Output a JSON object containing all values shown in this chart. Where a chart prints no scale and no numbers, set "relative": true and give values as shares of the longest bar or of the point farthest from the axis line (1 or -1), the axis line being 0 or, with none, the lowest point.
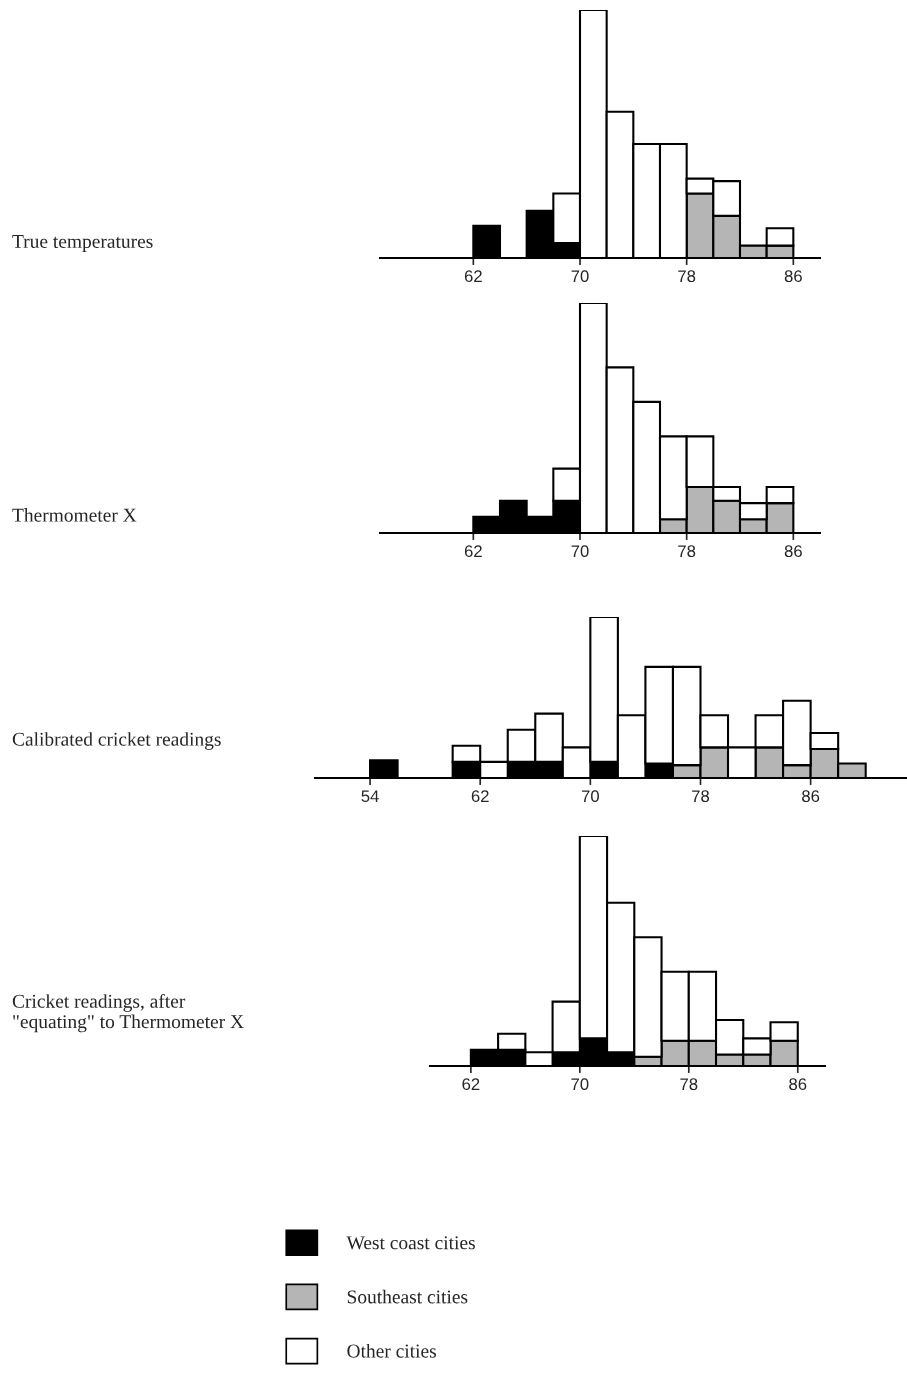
{
  "chart_data": [
    {
      "type": "bar",
      "ylabel": "True temperatures",
      "relative": true,
      "stacked": true,
      "legend": "bottom",
      "grid": false,
      "xlim": [
        55,
        88
      ],
      "xticks": [
        62,
        70,
        78,
        86
      ],
      "x": [
        63,
        65,
        67,
        69,
        71,
        73,
        75,
        77,
        79,
        81,
        83,
        85
      ],
      "series": [
        {
          "name": "West coast cities",
          "color": "#000000",
          "values": [
            0.13,
            0,
            0.19,
            0.06,
            0,
            0,
            0,
            0,
            0,
            0,
            0,
            0
          ]
        },
        {
          "name": "Southeast cities",
          "color": "#b5b5b5",
          "values": [
            0,
            0,
            0,
            0,
            0,
            0,
            0,
            0,
            0.26,
            0.17,
            0.05,
            0.05
          ]
        },
        {
          "name": "Other cities",
          "color": "#ffffff",
          "values": [
            0,
            0,
            0,
            0.2,
            1,
            0.59,
            0.46,
            0.46,
            0.06,
            0.14,
            0,
            0.07
          ]
        }
      ]
    },
    {
      "type": "bar",
      "ylabel": "Thermometer X",
      "relative": true,
      "stacked": true,
      "grid": false,
      "xlim": [
        55,
        88
      ],
      "xticks": [
        62,
        70,
        78,
        86
      ],
      "x": [
        63,
        65,
        67,
        69,
        71,
        73,
        75,
        77,
        79,
        81,
        83,
        85
      ],
      "series": [
        {
          "color": "#000000",
          "values": [
            0.07,
            0.14,
            0.07,
            0.14,
            0,
            0,
            0,
            0,
            0,
            0,
            0,
            0
          ]
        },
        {
          "color": "#b5b5b5",
          "values": [
            0,
            0,
            0,
            0,
            0,
            0,
            0,
            0.06,
            0.2,
            0.14,
            0.06,
            0.13
          ]
        },
        {
          "color": "#ffffff",
          "values": [
            0,
            0,
            0,
            0.14,
            1,
            0.72,
            0.57,
            0.36,
            0.22,
            0.06,
            0.07,
            0.07
          ]
        }
      ]
    },
    {
      "type": "bar",
      "ylabel": "Calibrated cricket readings",
      "relative": true,
      "stacked": true,
      "grid": false,
      "xlim": [
        50,
        93
      ],
      "xticks": [
        54,
        62,
        70,
        78,
        86
      ],
      "x": [
        55,
        57,
        59,
        61,
        63,
        65,
        67,
        69,
        71,
        73,
        75,
        77,
        79,
        81,
        83,
        85,
        87,
        89
      ],
      "series": [
        {
          "color": "#000000",
          "values": [
            0.11,
            0,
            0,
            0.1,
            0,
            0.1,
            0.1,
            0,
            0.1,
            0,
            0.09,
            0,
            0,
            0,
            0,
            0,
            0,
            0
          ]
        },
        {
          "color": "#b5b5b5",
          "values": [
            0,
            0,
            0,
            0,
            0,
            0,
            0,
            0,
            0,
            0,
            0,
            0.08,
            0.19,
            0,
            0.19,
            0.08,
            0.18,
            0.09
          ]
        },
        {
          "color": "#ffffff",
          "values": [
            0,
            0,
            0,
            0.1,
            0.1,
            0.2,
            0.3,
            0.19,
            0.9,
            0.39,
            0.6,
            0.61,
            0.2,
            0.19,
            0.2,
            0.4,
            0.1,
            0
          ]
        }
      ]
    },
    {
      "type": "bar",
      "ylabel": "Cricket readings, after\n\"equating\" to Thermometer X",
      "relative": true,
      "stacked": true,
      "grid": false,
      "xlim": [
        59,
        88
      ],
      "xticks": [
        62,
        70,
        78,
        86
      ],
      "x": [
        63,
        65,
        67,
        69,
        71,
        73,
        75,
        77,
        79,
        81,
        83,
        85
      ],
      "series": [
        {
          "color": "#000000",
          "values": [
            0.07,
            0.07,
            0,
            0.06,
            0.12,
            0.06,
            0,
            0,
            0,
            0,
            0,
            0
          ]
        },
        {
          "color": "#b5b5b5",
          "values": [
            0,
            0,
            0,
            0,
            0,
            0,
            0.04,
            0.11,
            0.11,
            0.05,
            0.05,
            0.11
          ]
        },
        {
          "color": "#ffffff",
          "values": [
            0,
            0.07,
            0.06,
            0.22,
            0.88,
            0.65,
            0.52,
            0.3,
            0.3,
            0.15,
            0.07,
            0.08
          ]
        }
      ]
    }
  ]
}
